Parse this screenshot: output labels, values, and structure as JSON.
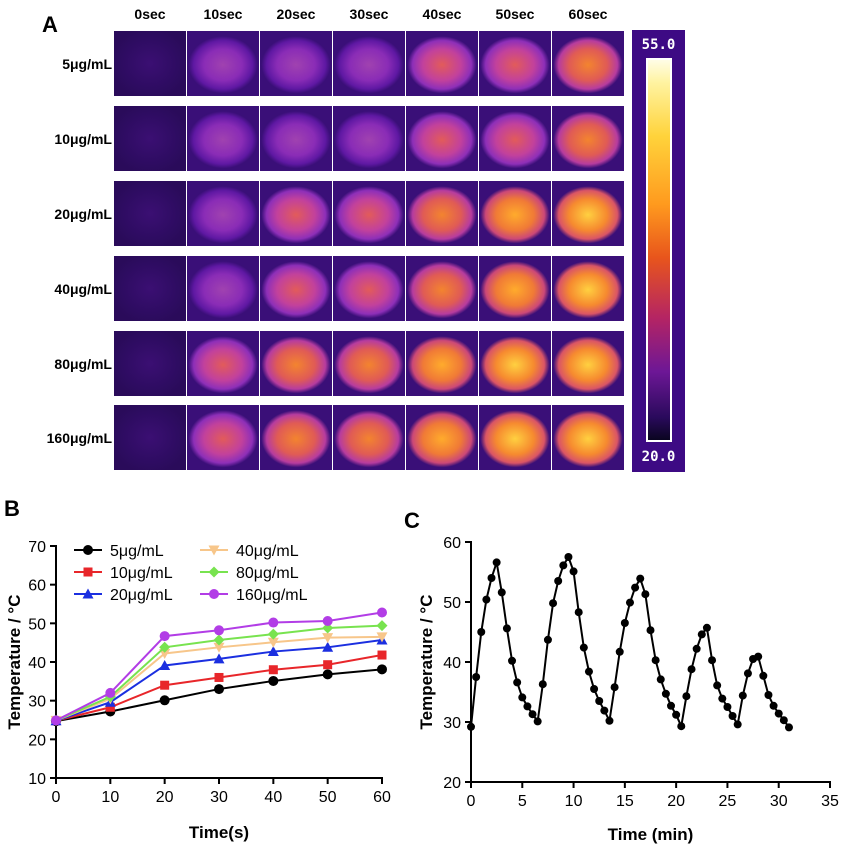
{
  "panel_a": {
    "letter": "A",
    "time_labels": [
      "0sec",
      "10sec",
      "20sec",
      "30sec",
      "40sec",
      "50sec",
      "60sec"
    ],
    "concentration_labels": [
      "5μg/mL",
      "10μg/mL",
      "20μg/mL",
      "40μg/mL",
      "80μg/mL",
      "160μg/mL"
    ],
    "colorbar": {
      "max_label": "55.0",
      "min_label": "20.0",
      "background": "#3d0a84"
    }
  },
  "chart_data": [
    {
      "panel": "B",
      "type": "line",
      "xlabel": "Time(s)",
      "ylabel": "Temperature / °C",
      "xlim": [
        0,
        60
      ],
      "ylim": [
        10,
        70
      ],
      "x_ticks": [
        "0",
        "10",
        "20",
        "30",
        "40",
        "50",
        "60"
      ],
      "y_ticks": [
        "10",
        "20",
        "30",
        "40",
        "50",
        "60",
        "70"
      ],
      "x": [
        0,
        10,
        20,
        30,
        40,
        50,
        60
      ],
      "legend_position": "top-left",
      "series": [
        {
          "name": "5μg/mL",
          "color": "#000000",
          "marker": "circle",
          "values": [
            24.7,
            27.2,
            30.1,
            33.0,
            35.1,
            36.8,
            38.1
          ]
        },
        {
          "name": "10μg/mL",
          "color": "#e8262a",
          "marker": "square",
          "values": [
            24.8,
            28.3,
            34.0,
            36.0,
            38.0,
            39.3,
            41.8
          ]
        },
        {
          "name": "20μg/mL",
          "color": "#1b2fe0",
          "marker": "triangle-up",
          "values": [
            24.8,
            29.6,
            39.1,
            40.8,
            42.7,
            43.8,
            45.7
          ]
        },
        {
          "name": "40μg/mL",
          "color": "#f7c68a",
          "marker": "triangle-down",
          "values": [
            24.9,
            30.5,
            42.2,
            43.8,
            45.1,
            46.3,
            46.5
          ]
        },
        {
          "name": "80μg/mL",
          "color": "#78e34f",
          "marker": "diamond",
          "values": [
            24.9,
            31.0,
            43.8,
            45.7,
            47.2,
            48.8,
            49.4
          ]
        },
        {
          "name": "160μg/mL",
          "color": "#b23de6",
          "marker": "circle",
          "values": [
            24.9,
            32.0,
            46.7,
            48.2,
            50.2,
            50.6,
            52.8
          ]
        }
      ]
    },
    {
      "panel": "C",
      "type": "line",
      "xlabel": "Time (min)",
      "ylabel": "Temperature / °C",
      "xlim": [
        0,
        35
      ],
      "ylim": [
        20,
        60
      ],
      "x_ticks": [
        "0",
        "5",
        "10",
        "15",
        "20",
        "25",
        "30",
        "35"
      ],
      "y_ticks": [
        "20",
        "30",
        "40",
        "50",
        "60"
      ],
      "series": [
        {
          "color": "#000000",
          "marker": "circle",
          "x": [
            0.0,
            0.5,
            1.0,
            1.5,
            2.0,
            2.5,
            3.0,
            3.5,
            4.0,
            4.5,
            5.0,
            5.5,
            6.0,
            6.5,
            7.0,
            7.5,
            8.0,
            8.5,
            9.0,
            9.5,
            10.0,
            10.5,
            11.0,
            11.5,
            12.0,
            12.5,
            13.0,
            13.5,
            14.0,
            14.5,
            15.0,
            15.5,
            16.0,
            16.5,
            17.0,
            17.5,
            18.0,
            18.5,
            19.0,
            19.5,
            20.0,
            20.5,
            21.0,
            21.5,
            22.0,
            22.5,
            23.0,
            23.5,
            24.0,
            24.5,
            25.0,
            25.5,
            26.0,
            26.5,
            27.0,
            27.5,
            28.0,
            28.5,
            29.0,
            29.5,
            30.0,
            30.5,
            31.0
          ],
          "y": [
            29.2,
            37.5,
            45.0,
            50.4,
            54.0,
            56.6,
            51.6,
            45.6,
            40.2,
            36.6,
            34.1,
            32.6,
            31.3,
            30.1,
            36.3,
            43.7,
            49.8,
            53.5,
            56.1,
            57.5,
            55.1,
            48.3,
            42.4,
            38.4,
            35.5,
            33.5,
            31.9,
            30.2,
            35.8,
            41.7,
            46.5,
            49.9,
            52.4,
            53.9,
            51.3,
            45.3,
            40.3,
            37.1,
            34.7,
            32.7,
            31.2,
            29.3,
            34.3,
            38.8,
            42.2,
            44.6,
            45.7,
            40.3,
            36.1,
            33.9,
            32.5,
            31.0,
            29.6,
            34.4,
            38.1,
            40.5,
            40.9,
            37.7,
            34.5,
            32.7,
            31.4,
            30.3,
            29.1
          ]
        }
      ]
    }
  ]
}
